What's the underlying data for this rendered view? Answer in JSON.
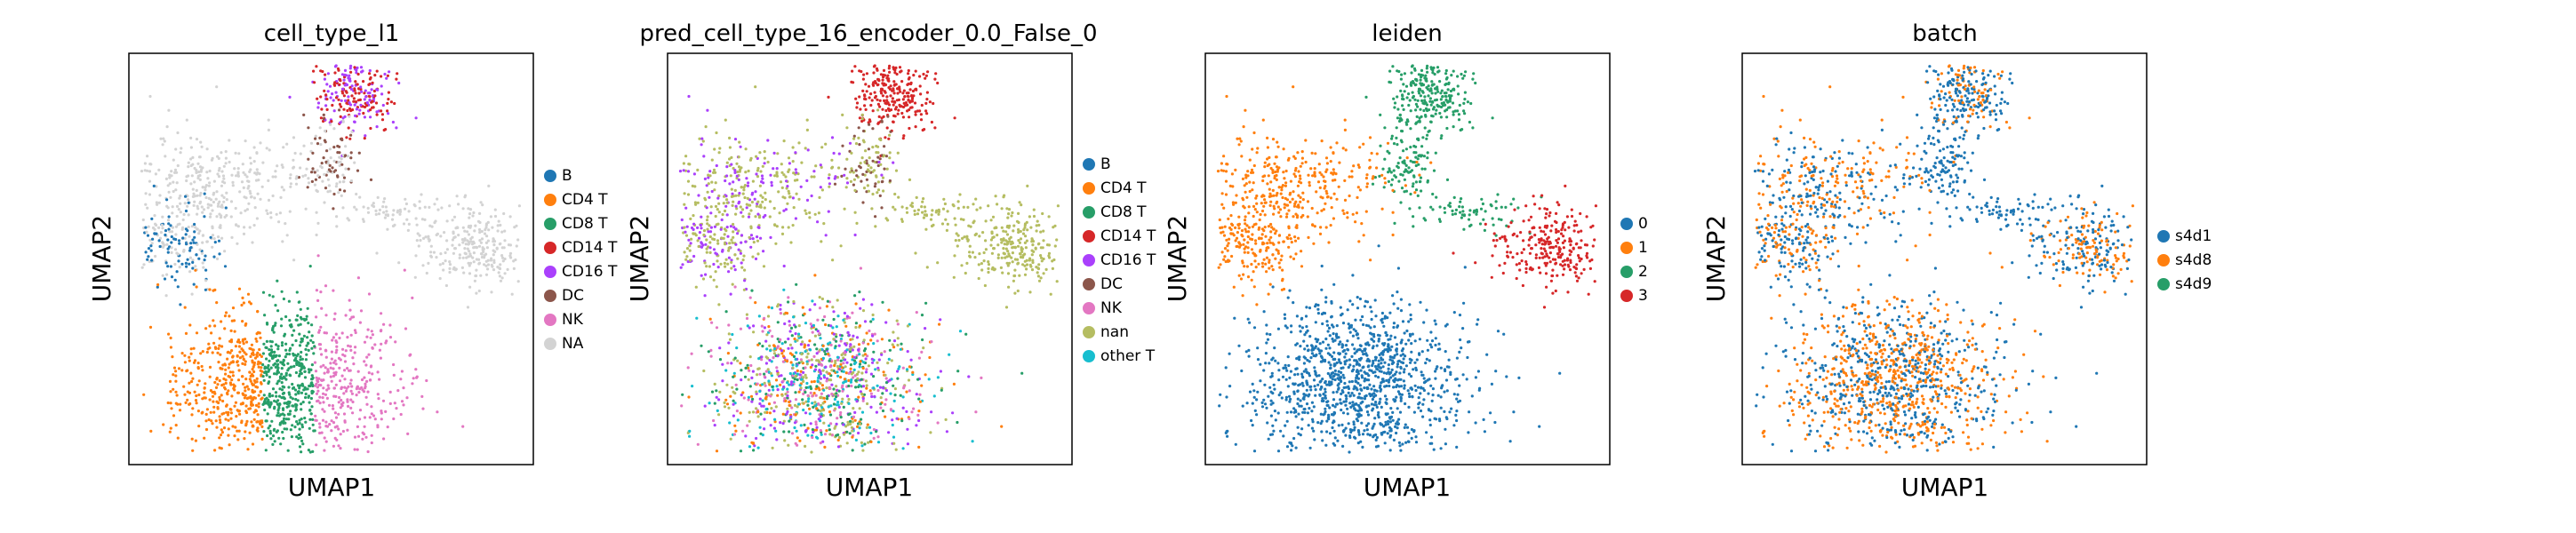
{
  "chart_data": [
    {
      "type": "scatter",
      "title": "cell_type_l1",
      "xlabel": "UMAP1",
      "ylabel": "UMAP2",
      "grid": false,
      "ticks": false,
      "legend_position": "right",
      "legend": [
        {
          "label": "B",
          "color": "#1f77b4"
        },
        {
          "label": "CD4 T",
          "color": "#ff7f0e"
        },
        {
          "label": "CD8 T",
          "color": "#279e68"
        },
        {
          "label": "CD14 T",
          "color": "#d62728"
        },
        {
          "label": "CD16 T",
          "color": "#aa40fc"
        },
        {
          "label": "DC",
          "color": "#8c564b"
        },
        {
          "label": "NK",
          "color": "#e377c2"
        },
        {
          "label": "NA",
          "color": "#d3d3d3"
        }
      ]
    },
    {
      "type": "scatter",
      "title": "pred_cell_type_16_encoder_0.0_False_0",
      "xlabel": "UMAP1",
      "ylabel": "UMAP2",
      "grid": false,
      "ticks": false,
      "legend_position": "right",
      "legend": [
        {
          "label": "B",
          "color": "#1f77b4"
        },
        {
          "label": "CD4 T",
          "color": "#ff7f0e"
        },
        {
          "label": "CD8 T",
          "color": "#279e68"
        },
        {
          "label": "CD14 T",
          "color": "#d62728"
        },
        {
          "label": "CD16 T",
          "color": "#aa40fc"
        },
        {
          "label": "DC",
          "color": "#8c564b"
        },
        {
          "label": "NK",
          "color": "#e377c2"
        },
        {
          "label": "nan",
          "color": "#b5bd61"
        },
        {
          "label": "other T",
          "color": "#17becf"
        }
      ]
    },
    {
      "type": "scatter",
      "title": "leiden",
      "xlabel": "UMAP1",
      "ylabel": "UMAP2",
      "grid": false,
      "ticks": false,
      "legend_position": "right",
      "legend": [
        {
          "label": "0",
          "color": "#1f77b4"
        },
        {
          "label": "1",
          "color": "#ff7f0e"
        },
        {
          "label": "2",
          "color": "#279e68"
        },
        {
          "label": "3",
          "color": "#d62728"
        }
      ]
    },
    {
      "type": "scatter",
      "title": "batch",
      "xlabel": "UMAP1",
      "ylabel": "UMAP2",
      "grid": false,
      "ticks": false,
      "legend_position": "right",
      "legend": [
        {
          "label": "s4d1",
          "color": "#1f77b4"
        },
        {
          "label": "s4d8",
          "color": "#ff7f0e"
        },
        {
          "label": "s4d9",
          "color": "#279e68"
        }
      ]
    }
  ]
}
